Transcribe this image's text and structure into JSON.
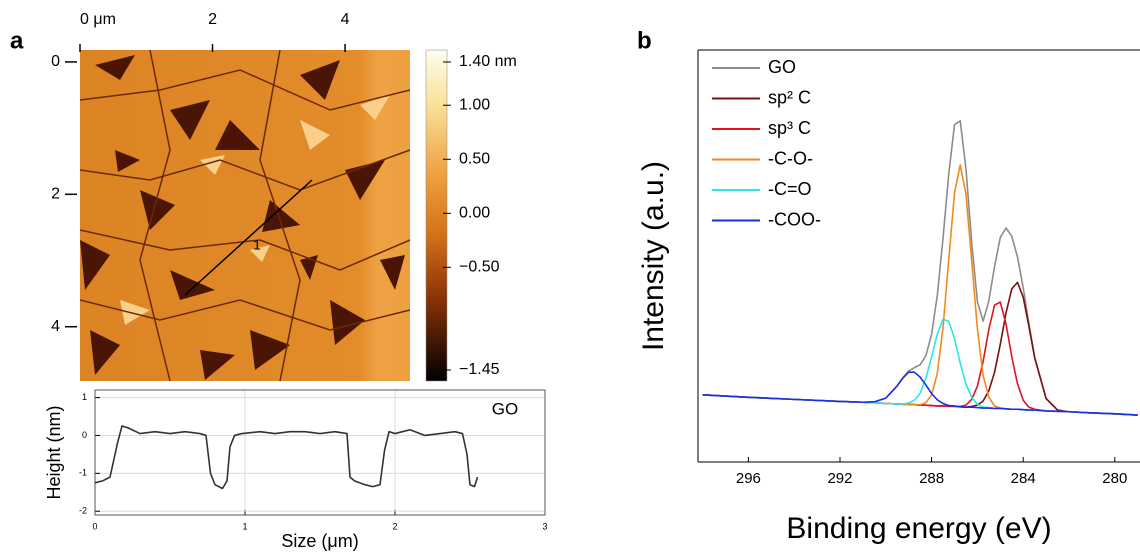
{
  "chart_data": [
    {
      "type": "image",
      "panel_label": "a",
      "annotation": "1",
      "xlim": [
        0,
        4.98
      ],
      "xticks": [
        {
          "value": 0,
          "label": "0 μm"
        },
        2,
        4
      ],
      "ylim": [
        -0.18,
        4.82
      ],
      "yticks": [
        0,
        2,
        4
      ],
      "colorbar": {
        "lim": [
          -1.45,
          1.4
        ],
        "ticks": [
          {
            "value": 1.4,
            "label": "1.40 nm"
          },
          {
            "value": 1,
            "label": "1.00"
          },
          {
            "value": 0.5,
            "label": "0.50"
          },
          {
            "value": 0,
            "label": "0.00"
          },
          {
            "value": -0.5,
            "label": "−0.50"
          },
          {
            "value": -1.45,
            "label": "−1.45"
          }
        ]
      }
    },
    {
      "type": "line",
      "xlabel": "Size (μm)",
      "ylabel": "Height (nm)",
      "grid": true,
      "legend": "upper-right",
      "xlim": [
        0,
        3
      ],
      "xticks": [
        0,
        1,
        2,
        3
      ],
      "ylim": [
        -2.1,
        1.2
      ],
      "yticks": [
        -2,
        -1,
        0,
        1
      ],
      "x": [
        0,
        0.05,
        0.1,
        0.15,
        0.18,
        0.22,
        0.3,
        0.4,
        0.5,
        0.6,
        0.7,
        0.74,
        0.77,
        0.8,
        0.85,
        0.88,
        0.9,
        0.93,
        0.98,
        1.1,
        1.2,
        1.3,
        1.4,
        1.5,
        1.6,
        1.68,
        1.7,
        1.73,
        1.8,
        1.85,
        1.9,
        1.93,
        1.96,
        2.0,
        2.1,
        2.2,
        2.3,
        2.4,
        2.45,
        2.48,
        2.5,
        2.53,
        2.55
      ],
      "series": [
        {
          "name": "GO",
          "color": "#333333",
          "values": [
            -1.25,
            -1.2,
            -1.1,
            -0.2,
            0.25,
            0.2,
            0.05,
            0.1,
            0.05,
            0.1,
            0.05,
            0.0,
            -1.0,
            -1.3,
            -1.4,
            -1.2,
            -0.3,
            0.0,
            0.05,
            0.1,
            0.05,
            0.1,
            0.1,
            0.05,
            0.1,
            0.05,
            -1.1,
            -1.2,
            -1.3,
            -1.35,
            -1.3,
            -0.4,
            0.1,
            0.05,
            0.15,
            0.0,
            0.05,
            0.1,
            0.05,
            -0.5,
            -1.3,
            -1.35,
            -1.1
          ]
        }
      ]
    },
    {
      "type": "line",
      "panel_label": "b",
      "xlabel": "Binding energy (eV)",
      "ylabel": "Intensity (a.u.)",
      "grid": false,
      "legend": "upper-left",
      "xlim": [
        298.2,
        278.9
      ],
      "xticks": [
        296,
        292,
        288,
        284,
        280
      ],
      "ylim": [
        0,
        100
      ],
      "x": [
        298,
        296,
        294,
        292,
        291,
        290.5,
        290,
        289.5,
        289.25,
        289,
        288.75,
        288.5,
        288.25,
        288,
        287.75,
        287.5,
        287.25,
        287,
        286.75,
        286.5,
        286.25,
        286,
        285.75,
        285.5,
        285.25,
        285,
        284.75,
        284.5,
        284.25,
        284,
        283.75,
        283.5,
        283,
        282.5,
        282,
        281,
        280,
        279
      ],
      "series": [
        {
          "name": "GO",
          "color": "#8c8c8c",
          "values": [
            16.3,
            15.7,
            15.2,
            14.7,
            14.5,
            14.6,
            15.5,
            18.5,
            20.5,
            22.1,
            22.9,
            23.6,
            25.8,
            31.0,
            40.5,
            54.4,
            69.9,
            81.9,
            82.8,
            71.2,
            53.4,
            38.9,
            34.2,
            39.1,
            47.5,
            54.5,
            56.8,
            54.8,
            49.8,
            42.3,
            33.6,
            25.5,
            15.4,
            12.6,
            12.2,
            11.9,
            11.7,
            11.4
          ]
        },
        {
          "name": "sp² C",
          "color": "#7b1010",
          "values": [
            16.3,
            15.7,
            15.2,
            14.7,
            14.5,
            14.4,
            14.2,
            14.1,
            14.0,
            14.0,
            13.9,
            13.8,
            13.8,
            13.7,
            13.6,
            13.6,
            13.5,
            13.5,
            13.4,
            13.3,
            13.5,
            13.8,
            14.8,
            17.3,
            21.8,
            28.6,
            36.2,
            42.0,
            43.6,
            40.0,
            32.9,
            25.3,
            15.4,
            12.6,
            12.2,
            11.9,
            11.7,
            11.4
          ]
        },
        {
          "name": "sp³ C",
          "color": "#e0141e",
          "values": [
            16.3,
            15.7,
            15.2,
            14.7,
            14.5,
            14.4,
            14.2,
            14.1,
            14.0,
            14.0,
            13.9,
            13.8,
            13.8,
            13.7,
            13.6,
            13.6,
            13.5,
            13.5,
            13.5,
            13.8,
            15.2,
            18.4,
            24.4,
            32.2,
            38.1,
            38.8,
            33.5,
            25.6,
            19.0,
            15.0,
            13.3,
            12.8,
            12.4,
            12.3,
            12.2,
            11.9,
            11.7,
            11.4
          ]
        },
        {
          "name": "-C-O-",
          "color": "#f08a1c",
          "values": [
            16.3,
            15.7,
            15.2,
            14.7,
            14.5,
            14.4,
            14.2,
            14.1,
            14.0,
            14.0,
            13.9,
            13.9,
            14.4,
            16.3,
            21.5,
            32.7,
            49.1,
            65.3,
            72.1,
            65.1,
            48.9,
            32.3,
            21.0,
            15.7,
            13.6,
            13.1,
            12.9,
            12.8,
            12.8,
            12.7,
            12.6,
            12.6,
            12.4,
            12.3,
            12.2,
            11.9,
            11.7,
            11.4
          ]
        },
        {
          "name": "-C=O",
          "color": "#2ee6e6",
          "values": [
            16.3,
            15.7,
            15.2,
            14.7,
            14.5,
            14.4,
            14.2,
            14.1,
            14.1,
            14.3,
            15.0,
            16.7,
            20.3,
            25.5,
            31.1,
            34.7,
            34.1,
            30.0,
            24.0,
            18.9,
            15.7,
            14.0,
            13.3,
            13.2,
            13.0,
            13.0,
            12.9,
            12.8,
            12.8,
            12.7,
            12.6,
            12.6,
            12.4,
            12.3,
            12.2,
            11.9,
            11.7,
            11.4
          ]
        },
        {
          "name": "-COO-",
          "color": "#1a2ee6",
          "values": [
            16.3,
            15.7,
            15.2,
            14.7,
            14.5,
            14.6,
            15.5,
            18.5,
            20.4,
            21.8,
            21.8,
            20.6,
            18.7,
            16.6,
            15.1,
            14.2,
            13.7,
            13.6,
            13.4,
            13.3,
            13.3,
            13.2,
            13.1,
            13.1,
            13.0,
            13.0,
            12.9,
            12.8,
            12.8,
            12.7,
            12.6,
            12.6,
            12.4,
            12.3,
            12.2,
            11.9,
            11.7,
            11.4
          ]
        }
      ]
    }
  ]
}
